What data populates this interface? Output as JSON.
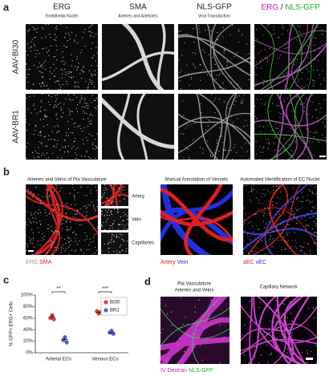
{
  "panels": {
    "a": "a",
    "b": "b",
    "c": "c",
    "d": "d"
  },
  "panel_a": {
    "columns": [
      {
        "title": "ERG",
        "subtitle": "Endothelial Nuclei"
      },
      {
        "title": "SMA",
        "subtitle": "Arteries and Arterioles"
      },
      {
        "title": "NLS-GFP",
        "subtitle": "Viral Transduction"
      }
    ],
    "merge_title": [
      "ERG",
      "/",
      "NLS-GFP"
    ],
    "rows": [
      "AAV-BI30",
      "AAV-BR1"
    ]
  },
  "panel_b": {
    "left_title": "Arteries and Veins of Pia Vasculature",
    "insets": [
      "Artery",
      "Vein",
      "Capillaries"
    ],
    "left_legend": [
      "ERG",
      "SMA"
    ],
    "middle_title": "Manual Annotation of Vessels",
    "middle_legend": [
      "Artery",
      "Vein"
    ],
    "right_title": "Automated Identification of EC Nuclei",
    "right_legend": [
      "aEC",
      "vEC"
    ]
  },
  "panel_d": {
    "left_title": [
      "Pia Vasculature",
      "Arteries and Veins"
    ],
    "right_title": "Capillary Network",
    "legend": [
      "IV Dextran",
      "NLS-GFP"
    ]
  },
  "chart_data": {
    "type": "scatter",
    "y_label": "% GFP+ ERG+ Cells",
    "categories": [
      "Arterial ECs",
      "Venous ECs"
    ],
    "series": [
      {
        "name": "BI30",
        "color": "#e0443c",
        "values": [
          [
            60,
            65,
            58
          ],
          [
            72,
            68,
            70
          ]
        ],
        "means": [
          62,
          70
        ],
        "errors": [
          4,
          3
        ]
      },
      {
        "name": "BR1",
        "color": "#4b5fd6",
        "values": [
          [
            22,
            27,
            18
          ],
          [
            35,
            38,
            33
          ]
        ],
        "means": [
          23,
          35
        ],
        "errors": [
          3,
          2
        ]
      }
    ],
    "significance": [
      "**",
      "***"
    ],
    "ylim": [
      0,
      100
    ],
    "yticks": [
      {
        "value": 0,
        "label": "0%"
      },
      {
        "value": 20,
        "label": "20%"
      },
      {
        "value": 40,
        "label": "40%"
      },
      {
        "value": 60,
        "label": "60%"
      },
      {
        "value": 80,
        "label": "80%"
      },
      {
        "value": 100,
        "label": "100%"
      }
    ]
  }
}
